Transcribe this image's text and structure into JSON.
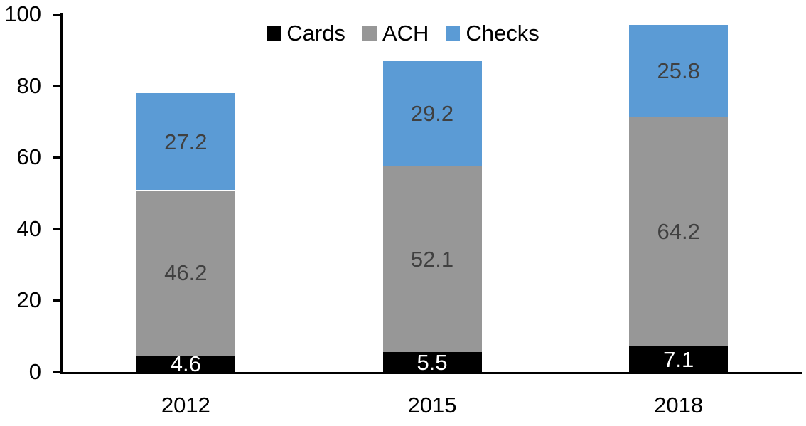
{
  "chart_data": {
    "type": "bar",
    "stacked": true,
    "title": "",
    "xlabel": "",
    "ylabel": "",
    "categories": [
      "2012",
      "2015",
      "2018"
    ],
    "series": [
      {
        "name": "Cards",
        "color": "#000000",
        "label_color": "#ffffff",
        "values": [
          4.6,
          5.5,
          7.1
        ]
      },
      {
        "name": "ACH",
        "color": "#979797",
        "label_color": "#404040",
        "values": [
          46.2,
          52.1,
          64.2
        ]
      },
      {
        "name": "Checks",
        "color": "#5B9BD5",
        "label_color": "#404040",
        "values": [
          27.2,
          29.2,
          25.8
        ]
      }
    ],
    "ylim": [
      0,
      100
    ],
    "yticks": [
      0,
      20,
      40,
      60,
      80,
      100
    ],
    "legend_position": "top-center",
    "grid": false,
    "axis_color": "#000000",
    "background_color": "#ffffff"
  }
}
